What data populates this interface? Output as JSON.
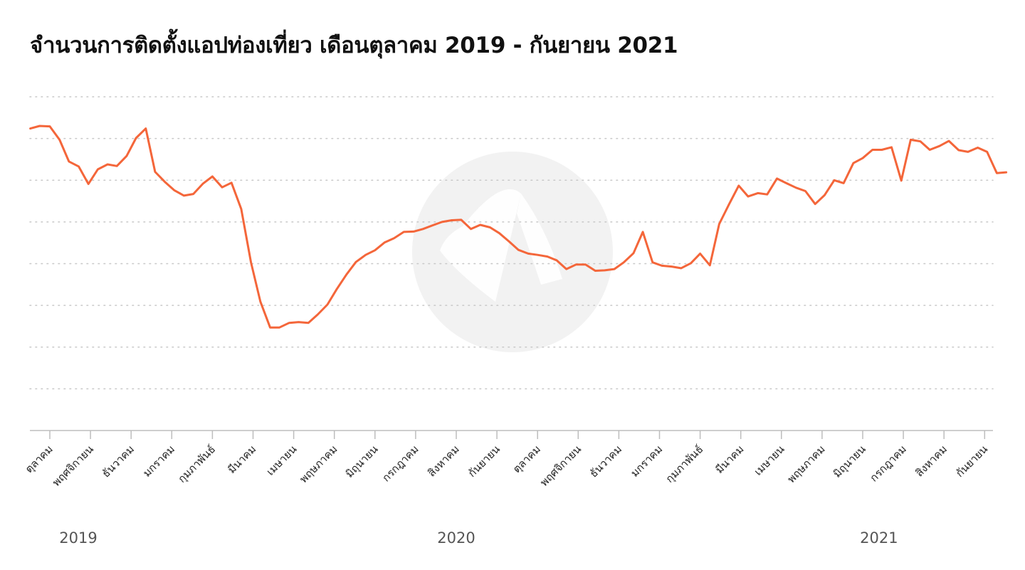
{
  "page": {
    "title": "จำนวนการติดตั้งแอปท่องเที่ยว เดือนตุลาคม 2019 - กันยายน 2021"
  },
  "chart_data": {
    "type": "line",
    "title": "จำนวนการติดตั้งแอปท่องเที่ยว เดือนตุลาคม 2019 - กันยายน 2021",
    "xlabel": "",
    "ylabel": "",
    "grid": true,
    "y_axis_labels_shown": false,
    "ylim": [
      0,
      8
    ],
    "gridlines": [
      1,
      2,
      3,
      4,
      5,
      6,
      7,
      8
    ],
    "categories": [
      "ตุลาคม",
      "พฤศจิกายน",
      "ธันวาคม",
      "มกราคม",
      "กุมภาพันธ์",
      "มีนาคม",
      "เมษายน",
      "พฤษภาคม",
      "มิถุนายน",
      "กรกฎาคม",
      "สิงหาคม",
      "กันยายน",
      "ตุลาคม",
      "พฤศจิกายน",
      "ธันวาคม",
      "มกราคม",
      "กุมภาพันธ์",
      "มีนาคม",
      "เมษายน",
      "พฤษภาคม",
      "มิถุนายน",
      "กรกฎาคม",
      "สิงหาคม",
      "กันยายน"
    ],
    "year_labels": [
      {
        "label": "2019",
        "month_index": 0.7
      },
      {
        "label": "2020",
        "month_index": 10.0
      },
      {
        "label": "2021",
        "month_index": 20.4
      }
    ],
    "series": [
      {
        "color": "#f4663a",
        "x": [
          -0.48,
          -0.25,
          0.0,
          0.24,
          0.47,
          0.71,
          0.95,
          1.18,
          1.42,
          1.65,
          1.89,
          2.12,
          2.36,
          2.59,
          2.83,
          3.06,
          3.3,
          3.53,
          3.77,
          4.0,
          4.24,
          4.47,
          4.71,
          4.95,
          5.18,
          5.42,
          5.65,
          5.89,
          6.12,
          6.36,
          6.59,
          6.83,
          7.06,
          7.3,
          7.53,
          7.77,
          8.0,
          8.24,
          8.47,
          8.71,
          8.95,
          9.18,
          9.42,
          9.65,
          9.89,
          10.12,
          10.36,
          10.59,
          10.83,
          11.06,
          11.3,
          11.53,
          11.77,
          12.0,
          12.24,
          12.47,
          12.71,
          12.95,
          13.18,
          13.42,
          13.65,
          13.89,
          14.12,
          14.36,
          14.59,
          14.83,
          15.06,
          15.3,
          15.53,
          15.77,
          16.0,
          16.24,
          16.47,
          16.71,
          16.95,
          17.18,
          17.42,
          17.65,
          17.89,
          18.12,
          18.36,
          18.59,
          18.83,
          19.06,
          19.3,
          19.53,
          19.77,
          20.0,
          20.24,
          20.47,
          20.71,
          20.95,
          21.18,
          21.42,
          21.65,
          21.89,
          22.12,
          22.36,
          22.59,
          22.83,
          23.06,
          23.3,
          23.53
        ],
        "y": [
          7.24,
          7.3,
          7.29,
          6.97,
          6.45,
          6.33,
          5.91,
          6.26,
          6.38,
          6.34,
          6.58,
          7.01,
          7.24,
          6.2,
          5.96,
          5.76,
          5.63,
          5.67,
          5.92,
          6.09,
          5.83,
          5.94,
          5.31,
          4.03,
          3.09,
          2.47,
          2.47,
          2.58,
          2.6,
          2.58,
          2.78,
          3.02,
          3.39,
          3.74,
          4.04,
          4.21,
          4.32,
          4.51,
          4.61,
          4.76,
          4.77,
          4.83,
          4.92,
          5.0,
          5.04,
          5.05,
          4.83,
          4.93,
          4.87,
          4.73,
          4.53,
          4.33,
          4.24,
          4.21,
          4.17,
          4.08,
          3.87,
          3.98,
          3.98,
          3.83,
          3.84,
          3.87,
          4.03,
          4.25,
          4.76,
          4.03,
          3.95,
          3.93,
          3.89,
          4.01,
          4.24,
          3.96,
          4.95,
          5.42,
          5.87,
          5.61,
          5.69,
          5.66,
          6.04,
          5.93,
          5.82,
          5.74,
          5.43,
          5.64,
          6.0,
          5.93,
          6.41,
          6.53,
          6.73,
          6.73,
          6.79,
          5.99,
          6.97,
          6.93,
          6.73,
          6.82,
          6.94,
          6.72,
          6.68,
          6.78,
          6.68,
          6.17,
          6.19
        ]
      }
    ]
  }
}
